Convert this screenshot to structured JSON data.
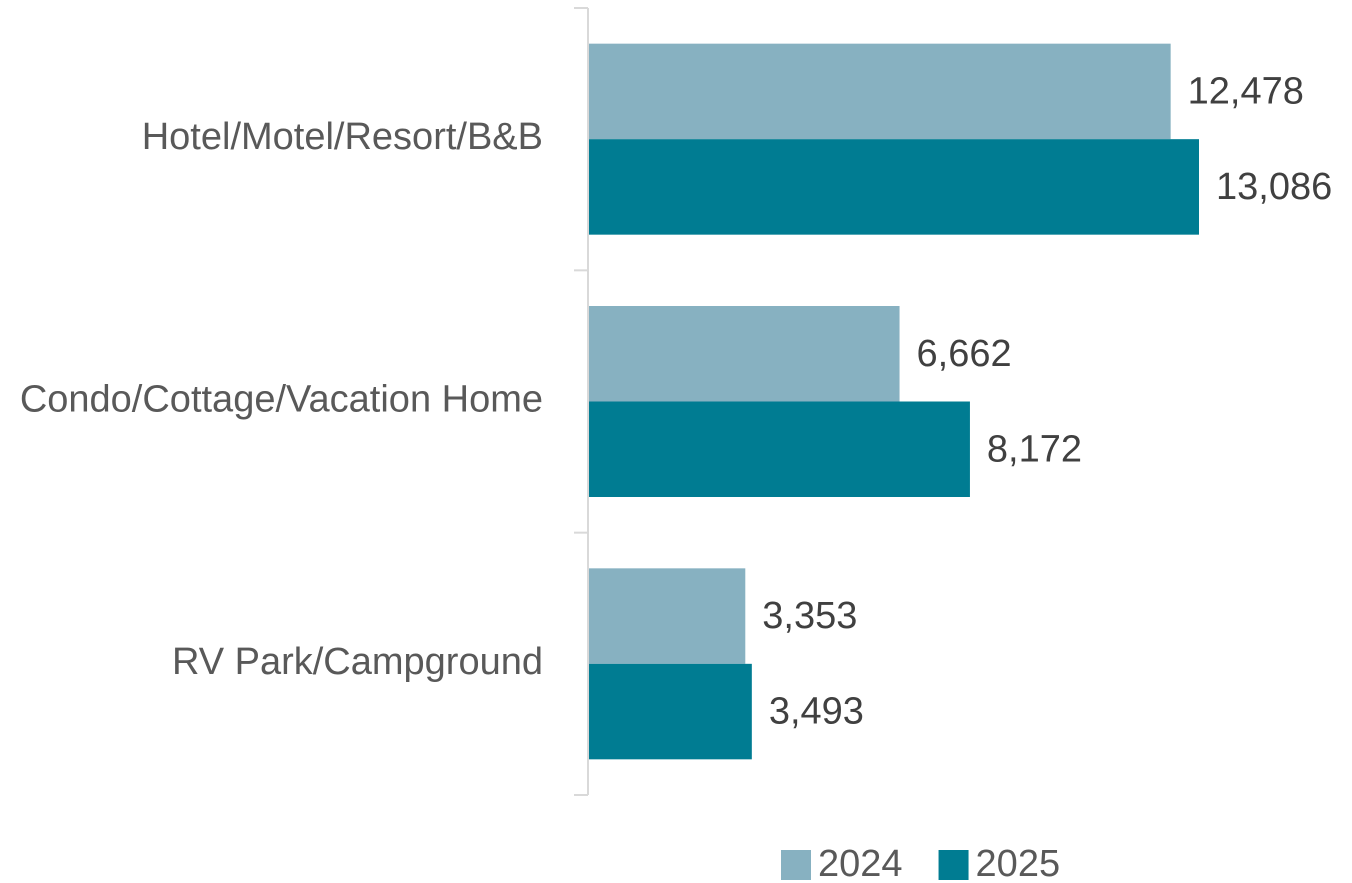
{
  "chart_data": {
    "type": "hbar",
    "categories": [
      "Hotel/Motel/Resort/B&B",
      "Condo/Cottage/Vacation Home",
      "RV Park/Campground"
    ],
    "series": [
      {
        "name": "2024",
        "color": "#87b1c1",
        "values": [
          12478,
          6662,
          3353
        ],
        "value_labels": [
          "12,478",
          "6,662",
          "3,353"
        ]
      },
      {
        "name": "2025",
        "color": "#007c92",
        "values": [
          13086,
          8172,
          3493
        ],
        "value_labels": [
          "13,086",
          "8,172",
          "3,493"
        ]
      }
    ],
    "legend": "bottom"
  }
}
